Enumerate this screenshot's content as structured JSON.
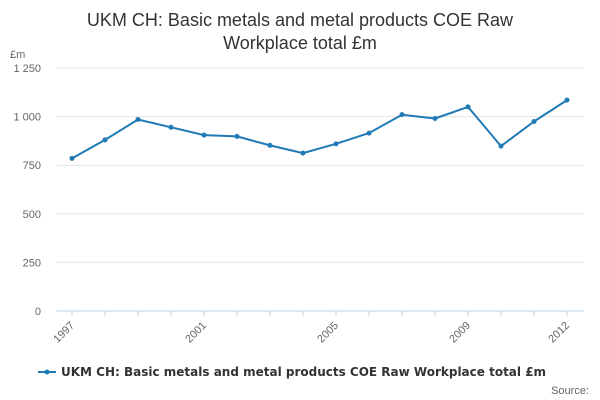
{
  "chart_data": {
    "type": "line",
    "title_lines": [
      "UKM CH: Basic metals and metal products COE Raw",
      "Workplace total £m"
    ],
    "y_unit": "£m",
    "ylim": [
      0,
      1250
    ],
    "y_ticks": [
      0,
      250,
      500,
      750,
      1000,
      1250
    ],
    "y_tick_labels": [
      "0",
      "250",
      "500",
      "750",
      "1 000",
      "1 250"
    ],
    "x": [
      1997,
      1998,
      1999,
      2000,
      2001,
      2002,
      2003,
      2004,
      2005,
      2006,
      2007,
      2008,
      2009,
      2010,
      2011,
      2012
    ],
    "x_tick_values": [
      1997,
      2001,
      2005,
      2009,
      2012
    ],
    "x_tick_labels": [
      "1997",
      "2001",
      "2005",
      "2009",
      "2012"
    ],
    "series": [
      {
        "name": "UKM CH: Basic metals and metal products COE Raw Workplace total £m",
        "color": "#1f7bb6",
        "values": [
          785,
          880,
          985,
          945,
          905,
          898,
          852,
          812,
          860,
          915,
          1010,
          990,
          1050,
          848,
          975,
          1085
        ]
      }
    ],
    "grid": "horizontal",
    "legend_position": "bottom-left",
    "source_label": "Source:"
  }
}
